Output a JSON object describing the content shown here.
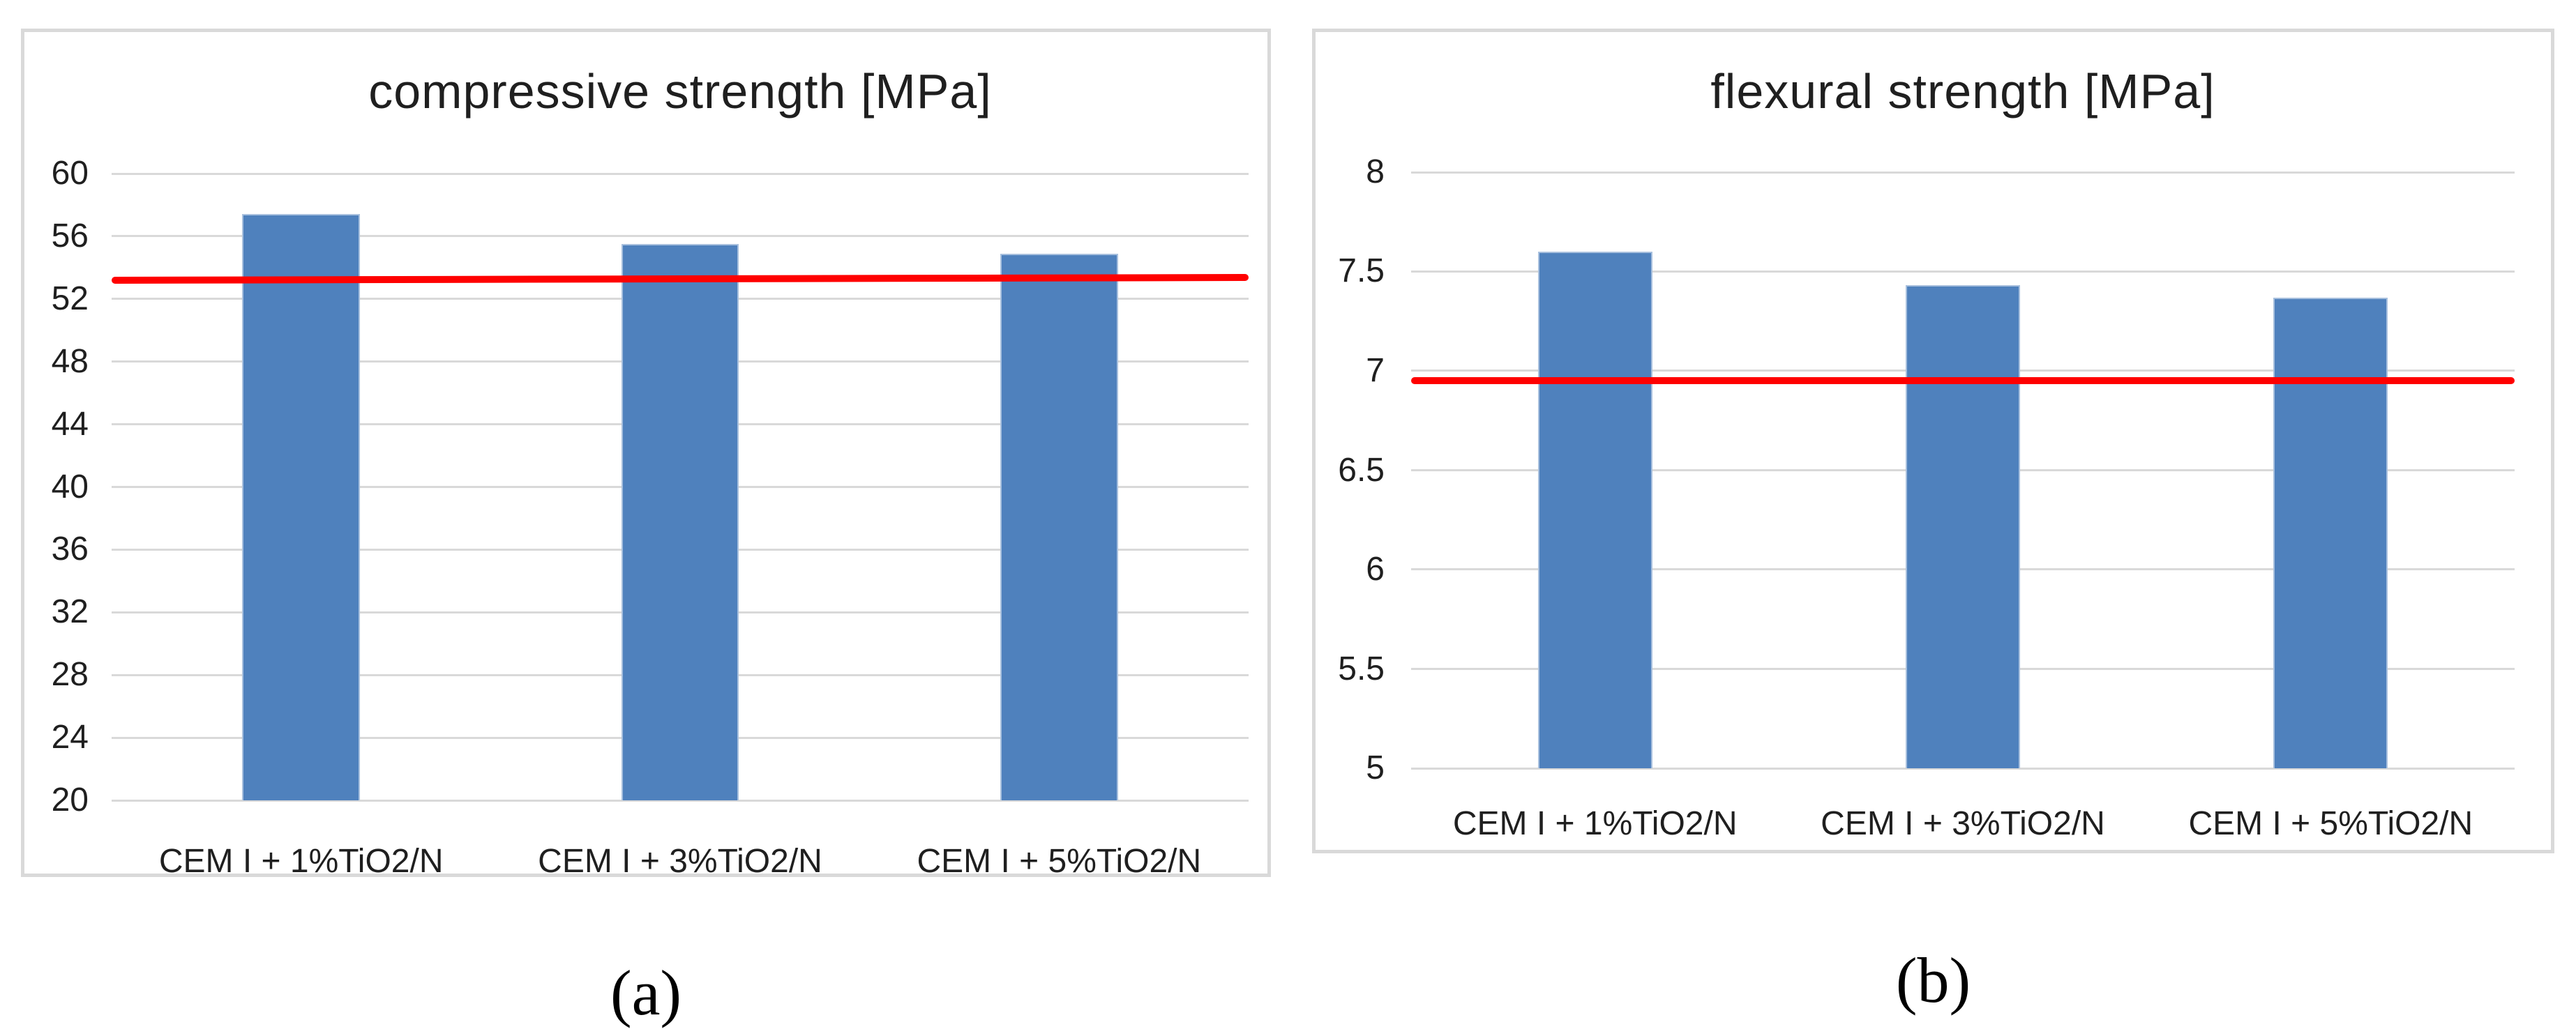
{
  "figure": {
    "captions": {
      "a": "(a)",
      "b": "(b)"
    }
  },
  "colors": {
    "bar_fill": "#4f81bd",
    "bar_edge": "#a8c0de",
    "reference_line": "#ff0000",
    "gridline": "#d9d9d9",
    "panel_border": "#d9d9d9",
    "text": "#1f1f1f",
    "background": "#ffffff"
  },
  "chart_data": [
    {
      "id": "a",
      "type": "bar",
      "title": "compressive strength [MPa]",
      "caption": "(a)",
      "categories": [
        "CEM I + 1%TiO2/N",
        "CEM I + 3%TiO2/N",
        "CEM I + 5%TiO2/N"
      ],
      "values": [
        57.4,
        55.5,
        54.9
      ],
      "reference_line": 53.3,
      "ylabel": "",
      "xlabel": "",
      "ylim": [
        20,
        60
      ],
      "ytick_step": 4,
      "grid": true,
      "legend": "none"
    },
    {
      "id": "b",
      "type": "bar",
      "title": "flexural strength [MPa]",
      "caption": "(b)",
      "categories": [
        "CEM I + 1%TiO2/N",
        "CEM I + 3%TiO2/N",
        "CEM I + 5%TiO2/N"
      ],
      "values": [
        7.6,
        7.43,
        7.37
      ],
      "reference_line": 6.95,
      "ylabel": "",
      "xlabel": "",
      "ylim": [
        5,
        8
      ],
      "ytick_step": 0.5,
      "grid": true,
      "legend": "none"
    }
  ]
}
